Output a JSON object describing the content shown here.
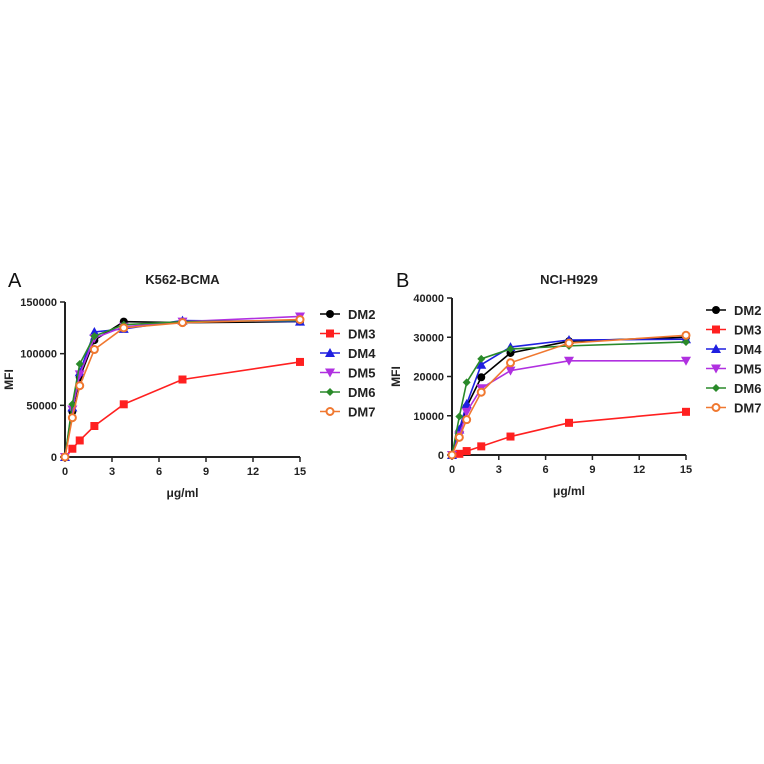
{
  "chart_data": [
    {
      "type": "line",
      "panel_label": "A",
      "title": "K562-BCMA",
      "xlabel": "μg/ml",
      "ylabel": "MFI",
      "xlim": [
        0,
        15
      ],
      "ylim": [
        0,
        150000
      ],
      "xticks": [
        0,
        3,
        6,
        9,
        12,
        15
      ],
      "yticks": [
        0,
        50000,
        100000,
        150000
      ],
      "grid": false,
      "legend_placement": "right",
      "x": [
        0,
        0.47,
        0.94,
        1.875,
        3.75,
        7.5,
        15
      ],
      "series": [
        {
          "name": "DM2",
          "color": "#000000",
          "marker": "circle",
          "values": [
            0,
            44000,
            77000,
            113000,
            131000,
            130000,
            131000
          ]
        },
        {
          "name": "DM3",
          "color": "#ff2020",
          "marker": "square",
          "values": [
            0,
            8000,
            16000,
            30000,
            51000,
            75000,
            92000
          ]
        },
        {
          "name": "DM4",
          "color": "#1f1fe0",
          "marker": "triangle-up",
          "values": [
            0,
            48000,
            82000,
            121000,
            124000,
            132000,
            131000
          ]
        },
        {
          "name": "DM5",
          "color": "#b030e0",
          "marker": "triangle-down",
          "values": [
            0,
            46000,
            80000,
            115000,
            126000,
            131000,
            136000
          ]
        },
        {
          "name": "DM6",
          "color": "#2a8a2a",
          "marker": "diamond",
          "values": [
            0,
            51000,
            90000,
            117000,
            128000,
            131000,
            132000
          ]
        },
        {
          "name": "DM7",
          "color": "#f07830",
          "marker": "open-circle",
          "values": [
            0,
            38000,
            69000,
            104000,
            125000,
            130000,
            133000
          ]
        }
      ]
    },
    {
      "type": "line",
      "panel_label": "B",
      "title": "NCI-H929",
      "xlabel": "μg/ml",
      "ylabel": "MFI",
      "xlim": [
        0,
        15
      ],
      "ylim": [
        0,
        40000
      ],
      "xticks": [
        0,
        3,
        6,
        9,
        12,
        15
      ],
      "yticks": [
        0,
        10000,
        20000,
        30000,
        40000
      ],
      "grid": false,
      "legend_placement": "right",
      "x": [
        0,
        0.47,
        0.94,
        1.875,
        3.75,
        7.5,
        15
      ],
      "series": [
        {
          "name": "DM2",
          "color": "#000000",
          "marker": "circle",
          "values": [
            0,
            6000,
            12300,
            19800,
            26000,
            29000,
            30000
          ]
        },
        {
          "name": "DM3",
          "color": "#ff2020",
          "marker": "square",
          "values": [
            0,
            300,
            1000,
            2200,
            4700,
            8200,
            11000
          ]
        },
        {
          "name": "DM4",
          "color": "#1f1fe0",
          "marker": "triangle-up",
          "values": [
            0,
            6500,
            13000,
            23000,
            27500,
            29300,
            29500
          ]
        },
        {
          "name": "DM5",
          "color": "#b030e0",
          "marker": "triangle-down",
          "values": [
            0,
            5000,
            11000,
            17000,
            21500,
            24000,
            24000
          ]
        },
        {
          "name": "DM6",
          "color": "#2a8a2a",
          "marker": "diamond",
          "values": [
            0,
            9800,
            18500,
            24500,
            27000,
            27800,
            28800
          ]
        },
        {
          "name": "DM7",
          "color": "#f07830",
          "marker": "open-circle",
          "values": [
            0,
            4500,
            9000,
            16000,
            23500,
            28500,
            30500
          ]
        }
      ]
    }
  ]
}
